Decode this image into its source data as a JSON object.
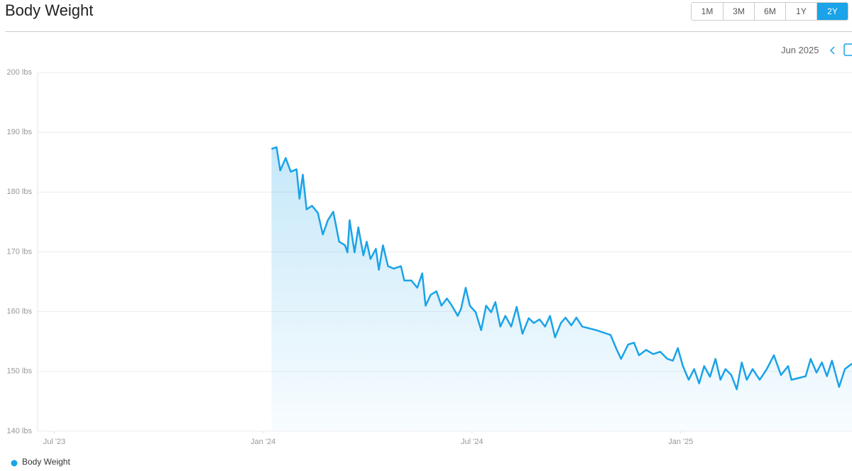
{
  "header": {
    "title": "Body Weight",
    "ranges": [
      {
        "label": "1M",
        "active": false
      },
      {
        "label": "3M",
        "active": false
      },
      {
        "label": "6M",
        "active": false
      },
      {
        "label": "1Y",
        "active": false
      },
      {
        "label": "2Y",
        "active": true
      }
    ]
  },
  "nav": {
    "period": "Jun 2025"
  },
  "chart_data": {
    "type": "area",
    "x": [
      2024.02,
      2024.032,
      2024.041,
      2024.054,
      2024.066,
      2024.08,
      2024.087,
      2024.095,
      2024.104,
      2024.117,
      2024.131,
      2024.143,
      2024.155,
      2024.168,
      2024.182,
      2024.196,
      2024.202,
      2024.207,
      2024.219,
      2024.228,
      2024.24,
      2024.248,
      2024.257,
      2024.27,
      2024.277,
      2024.287,
      2024.299,
      2024.313,
      2024.33,
      2024.338,
      2024.355,
      2024.369,
      2024.381,
      2024.389,
      2024.401,
      2024.415,
      2024.427,
      2024.44,
      2024.452,
      2024.466,
      2024.474,
      2024.485,
      2024.495,
      2024.509,
      2024.522,
      2024.534,
      2024.546,
      2024.556,
      2024.568,
      2024.58,
      2024.594,
      2024.607,
      2024.621,
      2024.636,
      2024.648,
      2024.662,
      2024.675,
      2024.687,
      2024.699,
      2024.713,
      2024.724,
      2024.738,
      2024.75,
      2024.764,
      2024.798,
      2024.832,
      2024.845,
      2024.857,
      2024.874,
      2024.888,
      2024.9,
      2024.917,
      2024.934,
      2024.951,
      2024.968,
      2024.981,
      2024.993,
      2025.005,
      2025.019,
      2025.032,
      2025.044,
      2025.056,
      2025.07,
      2025.083,
      2025.095,
      2025.107,
      2025.121,
      2025.134,
      2025.146,
      2025.158,
      2025.172,
      2025.189,
      2025.206,
      2025.223,
      2025.24,
      2025.257,
      2025.265,
      2025.299,
      2025.311,
      2025.325,
      2025.338,
      2025.35,
      2025.362,
      2025.379,
      2025.393,
      2025.41
    ],
    "series": [
      {
        "name": "Body Weight",
        "color": "#1aa3e8",
        "values": [
          187.2,
          187.5,
          183.6,
          185.7,
          183.4,
          183.8,
          178.9,
          182.9,
          177.1,
          177.7,
          176.5,
          172.9,
          175.3,
          176.7,
          171.7,
          171.1,
          169.9,
          175.3,
          169.9,
          174.1,
          169.4,
          171.7,
          168.8,
          170.5,
          167.0,
          171.1,
          167.6,
          167.2,
          167.6,
          165.2,
          165.2,
          164.0,
          166.4,
          161.0,
          162.8,
          163.4,
          161.0,
          162.2,
          161.0,
          159.3,
          160.5,
          164.0,
          161.0,
          159.9,
          156.9,
          161.0,
          159.9,
          161.6,
          157.5,
          159.3,
          157.5,
          160.8,
          156.3,
          158.9,
          158.1,
          158.7,
          157.5,
          159.3,
          155.7,
          158.1,
          159.0,
          157.7,
          159.0,
          157.5,
          156.9,
          156.1,
          153.9,
          152.1,
          154.5,
          154.8,
          152.7,
          153.6,
          152.9,
          153.3,
          152.1,
          151.8,
          153.9,
          150.9,
          148.6,
          150.4,
          148.0,
          150.9,
          149.1,
          152.1,
          148.6,
          150.4,
          149.4,
          147.0,
          151.5,
          148.6,
          150.4,
          148.6,
          150.4,
          152.7,
          149.4,
          150.9,
          148.6,
          149.2,
          152.1,
          149.8,
          151.5,
          149.2,
          151.8,
          147.4,
          150.4,
          151.3
        ]
      }
    ],
    "xlim": [
      2023.46,
      2025.41
    ],
    "xticks": [
      {
        "value": 2023.5,
        "label": "Jul '23"
      },
      {
        "value": 2024.0,
        "label": "Jan '24"
      },
      {
        "value": 2024.5,
        "label": "Jul '24"
      },
      {
        "value": 2025.0,
        "label": "Jan '25"
      }
    ],
    "ylim": [
      140,
      200
    ],
    "yticks": [
      {
        "value": 140,
        "label": "140 lbs"
      },
      {
        "value": 150,
        "label": "150 lbs"
      },
      {
        "value": 160,
        "label": "160 lbs"
      },
      {
        "value": 170,
        "label": "170 lbs"
      },
      {
        "value": 180,
        "label": "180 lbs"
      },
      {
        "value": 190,
        "label": "190 lbs"
      },
      {
        "value": 200,
        "label": "200 lbs"
      }
    ],
    "grid": true
  }
}
